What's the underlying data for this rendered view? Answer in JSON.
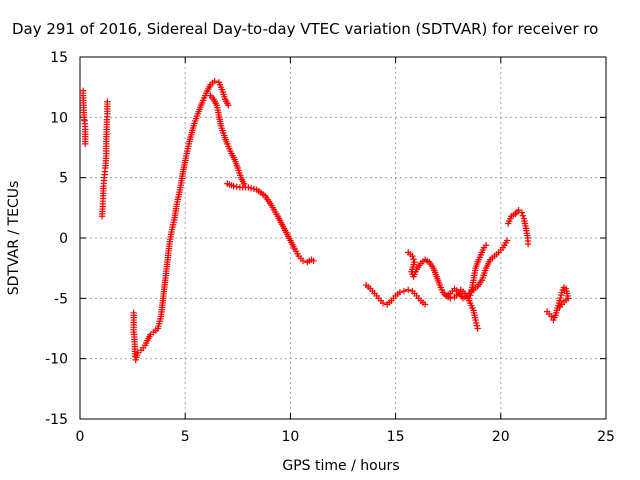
{
  "chart_data": {
    "type": "scatter",
    "title": "Day 291 of 2016, Sidereal Day-to-day VTEC variation (SDTVAR) for receiver ro",
    "xlabel": "GPS time / hours",
    "ylabel": "SDTVAR / TECUs",
    "xlim": [
      0,
      25
    ],
    "ylim": [
      -15,
      15
    ],
    "xticks": [
      0,
      5,
      10,
      15,
      20,
      25
    ],
    "yticks": [
      -15,
      -10,
      -5,
      0,
      5,
      10,
      15
    ],
    "grid": true,
    "marker": "+",
    "series": [
      {
        "color": "#ff0000",
        "segments": [
          [
            [
              0.15,
              12.2
            ],
            [
              0.15,
              11.8
            ],
            [
              0.2,
              9.8
            ],
            [
              0.22,
              9.7
            ],
            [
              0.25,
              9.0
            ],
            [
              0.25,
              7.8
            ]
          ],
          [
            [
              1.05,
              1.8
            ],
            [
              1.08,
              2.6
            ],
            [
              1.1,
              3.5
            ],
            [
              1.12,
              4.3
            ],
            [
              1.15,
              5.0
            ],
            [
              1.18,
              5.5
            ],
            [
              1.2,
              5.8
            ],
            [
              1.22,
              6.0
            ],
            [
              1.25,
              7.0
            ],
            [
              1.25,
              8.0
            ],
            [
              1.28,
              9.8
            ],
            [
              1.3,
              10.3
            ],
            [
              1.3,
              11.3
            ]
          ],
          [
            [
              2.55,
              -6.2
            ],
            [
              2.55,
              -7.8
            ],
            [
              2.58,
              -8.0
            ],
            [
              2.62,
              -9.8
            ],
            [
              2.65,
              -10.1
            ],
            [
              2.75,
              -9.5
            ],
            [
              2.9,
              -9.3
            ],
            [
              3.1,
              -8.9
            ],
            [
              3.2,
              -8.5
            ],
            [
              3.35,
              -8.0
            ],
            [
              3.5,
              -7.8
            ],
            [
              3.7,
              -7.5
            ],
            [
              3.85,
              -6.5
            ],
            [
              3.95,
              -5.0
            ],
            [
              4.05,
              -3.5
            ],
            [
              4.15,
              -2.0
            ],
            [
              4.25,
              -0.5
            ],
            [
              4.35,
              0.5
            ],
            [
              4.5,
              1.7
            ],
            [
              4.6,
              2.8
            ],
            [
              4.75,
              4.0
            ],
            [
              4.9,
              5.5
            ],
            [
              5.05,
              6.8
            ],
            [
              5.2,
              8.0
            ],
            [
              5.4,
              9.3
            ],
            [
              5.6,
              10.3
            ],
            [
              5.8,
              11.2
            ],
            [
              6.0,
              12.0
            ],
            [
              6.2,
              12.7
            ],
            [
              6.4,
              13.0
            ],
            [
              6.6,
              12.9
            ],
            [
              6.75,
              12.3
            ],
            [
              6.9,
              11.5
            ],
            [
              7.05,
              11.0
            ]
          ],
          [
            [
              6.2,
              11.8
            ],
            [
              6.35,
              11.5
            ],
            [
              6.5,
              11.0
            ],
            [
              6.6,
              10.2
            ],
            [
              6.7,
              9.3
            ],
            [
              6.85,
              8.5
            ],
            [
              7.0,
              7.8
            ],
            [
              7.2,
              7.0
            ],
            [
              7.35,
              6.5
            ],
            [
              7.5,
              5.8
            ],
            [
              7.65,
              5.0
            ],
            [
              7.8,
              4.5
            ]
          ],
          [
            [
              7.0,
              4.5
            ],
            [
              7.3,
              4.3
            ],
            [
              7.6,
              4.2
            ],
            [
              8.0,
              4.2
            ],
            [
              8.4,
              4.0
            ],
            [
              8.8,
              3.5
            ],
            [
              9.1,
              2.7
            ],
            [
              9.4,
              1.8
            ],
            [
              9.7,
              0.8
            ],
            [
              10.0,
              -0.2
            ],
            [
              10.2,
              -0.9
            ],
            [
              10.4,
              -1.5
            ],
            [
              10.6,
              -1.9
            ],
            [
              10.8,
              -2.0
            ],
            [
              11.0,
              -1.8
            ],
            [
              11.1,
              -1.9
            ]
          ],
          [
            [
              13.6,
              -3.9
            ],
            [
              13.8,
              -4.2
            ],
            [
              14.0,
              -4.6
            ],
            [
              14.2,
              -5.0
            ],
            [
              14.4,
              -5.4
            ],
            [
              14.6,
              -5.5
            ],
            [
              14.8,
              -5.2
            ],
            [
              15.0,
              -4.8
            ],
            [
              15.2,
              -4.5
            ],
            [
              15.4,
              -4.4
            ],
            [
              15.6,
              -4.3
            ],
            [
              15.8,
              -4.4
            ],
            [
              16.0,
              -4.8
            ],
            [
              16.2,
              -5.2
            ],
            [
              16.4,
              -5.5
            ]
          ],
          [
            [
              15.6,
              -1.2
            ],
            [
              15.8,
              -1.5
            ],
            [
              15.9,
              -2.0
            ],
            [
              15.75,
              -2.8
            ],
            [
              15.85,
              -3.2
            ],
            [
              16.0,
              -2.6
            ],
            [
              16.2,
              -2.1
            ],
            [
              16.4,
              -1.8
            ],
            [
              16.6,
              -2.0
            ],
            [
              16.8,
              -2.5
            ],
            [
              16.95,
              -3.2
            ],
            [
              17.1,
              -3.9
            ],
            [
              17.25,
              -4.5
            ],
            [
              17.4,
              -4.8
            ],
            [
              17.6,
              -5.0
            ],
            [
              17.8,
              -4.9
            ],
            [
              18.0,
              -4.6
            ],
            [
              18.1,
              -4.3
            ],
            [
              18.3,
              -4.6
            ],
            [
              18.5,
              -5.2
            ],
            [
              18.7,
              -6.0
            ],
            [
              18.8,
              -6.8
            ],
            [
              18.9,
              -7.5
            ]
          ],
          [
            [
              17.4,
              -4.8
            ],
            [
              17.6,
              -4.6
            ],
            [
              17.8,
              -4.2
            ],
            [
              18.0,
              -4.5
            ],
            [
              18.2,
              -5.0
            ],
            [
              18.4,
              -4.8
            ],
            [
              18.6,
              -4.4
            ],
            [
              18.9,
              -4.0
            ],
            [
              19.1,
              -3.5
            ],
            [
              19.3,
              -2.5
            ],
            [
              19.5,
              -1.8
            ],
            [
              19.7,
              -1.5
            ],
            [
              19.9,
              -1.2
            ],
            [
              20.1,
              -0.8
            ],
            [
              20.3,
              -0.2
            ]
          ],
          [
            [
              18.5,
              -5.0
            ],
            [
              18.6,
              -4.5
            ],
            [
              18.7,
              -3.5
            ],
            [
              18.8,
              -2.5
            ],
            [
              18.95,
              -1.8
            ],
            [
              19.1,
              -1.2
            ],
            [
              19.2,
              -0.8
            ],
            [
              19.3,
              -0.6
            ]
          ],
          [
            [
              20.35,
              1.2
            ],
            [
              20.5,
              1.8
            ],
            [
              20.7,
              2.0
            ],
            [
              20.85,
              2.3
            ],
            [
              21.0,
              2.1
            ],
            [
              21.1,
              1.6
            ],
            [
              21.2,
              0.8
            ],
            [
              21.28,
              0.0
            ],
            [
              21.3,
              -0.5
            ]
          ],
          [
            [
              22.2,
              -6.1
            ],
            [
              22.4,
              -6.5
            ],
            [
              22.5,
              -6.8
            ],
            [
              22.6,
              -6.4
            ],
            [
              22.7,
              -5.8
            ],
            [
              22.8,
              -5.2
            ],
            [
              22.9,
              -4.5
            ],
            [
              23.0,
              -4.1
            ],
            [
              23.1,
              -4.2
            ],
            [
              23.15,
              -4.6
            ],
            [
              23.2,
              -5.0
            ],
            [
              23.0,
              -5.3
            ],
            [
              22.8,
              -5.7
            ]
          ]
        ]
      }
    ]
  }
}
